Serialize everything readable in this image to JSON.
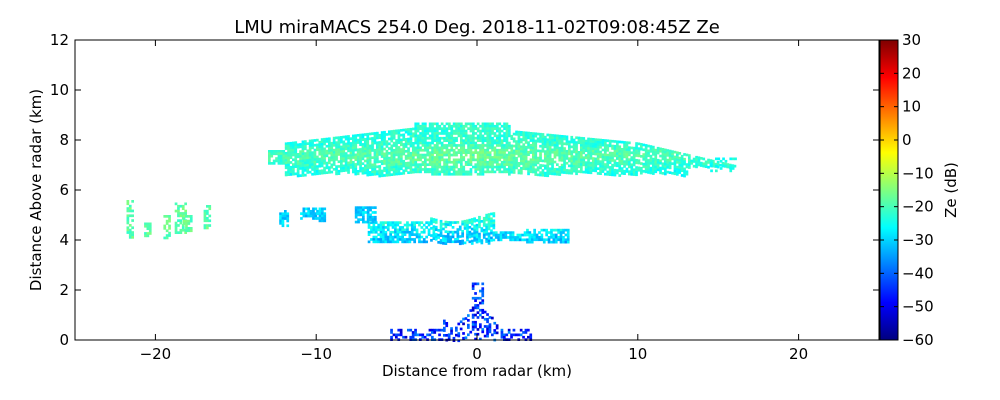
{
  "chart_data": {
    "type": "heatmap",
    "title": "LMU miraMACS 254.0 Deg. 2018-11-02T09:08:45Z  Ze",
    "xlabel": "Distance from radar (km)",
    "ylabel": "Distance Above radar  (km)",
    "colorbar_label": "Ze (dB)",
    "xlim": [
      -25,
      25
    ],
    "ylim": [
      0,
      12
    ],
    "clim": [
      -60,
      30
    ],
    "colormap": "jet",
    "grid": false,
    "x_ticks": [
      -20,
      -10,
      0,
      10,
      20
    ],
    "x_tick_labels": [
      "−20",
      "−10",
      "0",
      "10",
      "20"
    ],
    "y_ticks": [
      0,
      2,
      4,
      6,
      8,
      10,
      12
    ],
    "y_tick_labels": [
      "0",
      "2",
      "4",
      "6",
      "8",
      "10",
      "12"
    ],
    "colorbar_ticks": [
      -60,
      -50,
      -40,
      -30,
      -20,
      -10,
      0,
      10,
      20,
      30
    ],
    "colorbar_tick_labels": [
      "−60",
      "−50",
      "−40",
      "−30",
      "−20",
      "−10",
      "0",
      "10",
      "20",
      "30"
    ],
    "echo_regions": [
      {
        "name": "upper-cloud-layer",
        "x_range": [
          -13,
          16
        ],
        "y_range": [
          6.6,
          8.8
        ],
        "ze_range_db": [
          -30,
          -15
        ]
      },
      {
        "name": "mid-cloud-layer",
        "x_range": [
          -7,
          5.5
        ],
        "y_range": [
          3.9,
          5.2
        ],
        "ze_range_db": [
          -38,
          -25
        ]
      },
      {
        "name": "left-streaks",
        "x_range": [
          -22,
          -16.5
        ],
        "y_range": [
          4,
          5.6
        ],
        "ze_range_db": [
          -25,
          -15
        ]
      },
      {
        "name": "near-radar-clutter",
        "x_range": [
          -5.5,
          3.5
        ],
        "y_range": [
          0,
          2.4
        ],
        "ze_range_db": [
          -55,
          -30
        ]
      }
    ]
  }
}
